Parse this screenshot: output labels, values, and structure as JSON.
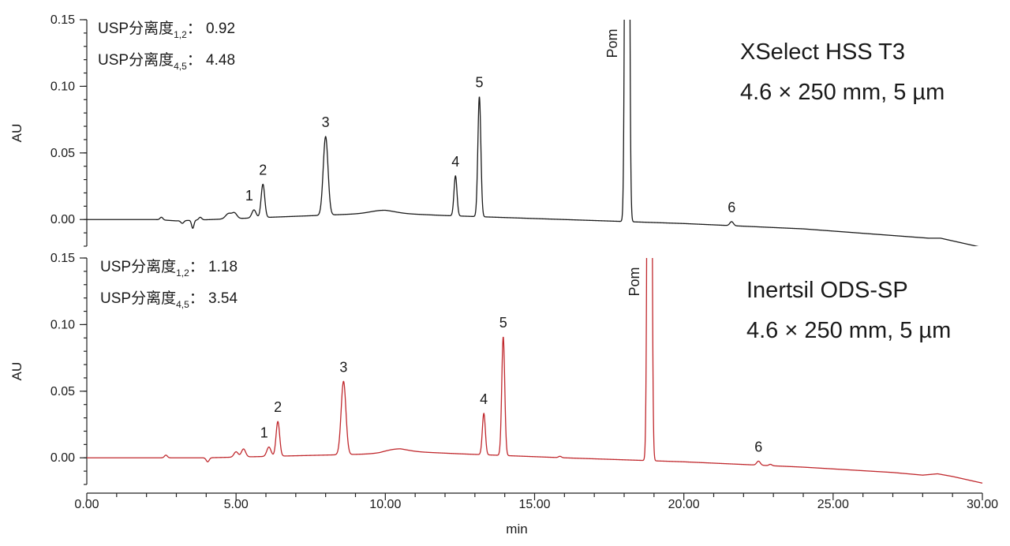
{
  "chart_data": {
    "type": "line",
    "xlabel": "min",
    "xlim": [
      0,
      30
    ],
    "x_ticks": [
      "0.00",
      "5.00",
      "10.00",
      "15.00",
      "20.00",
      "25.00",
      "30.00"
    ],
    "panels": [
      {
        "ylabel": "AU",
        "ylim": [
          -0.02,
          0.15
        ],
        "y_ticks": [
          "0.00",
          "0.05",
          "0.10",
          "0.15"
        ],
        "series": [
          {
            "color": "#1a1a1a",
            "baseline": [
              [
                0,
                0
              ],
              [
                2.3,
                0
              ],
              [
                3.0,
                -0.001
              ],
              [
                10.0,
                0.005
              ],
              [
                12,
                0.003
              ],
              [
                16,
                0.0
              ],
              [
                20,
                -0.003
              ],
              [
                24,
                -0.007
              ],
              [
                27,
                -0.012
              ],
              [
                28.2,
                -0.014
              ],
              [
                28.6,
                -0.014
              ],
              [
                29.0,
                -0.016
              ],
              [
                29.6,
                -0.019
              ],
              [
                30.0,
                -0.021
              ]
            ],
            "features": [
              {
                "t": 2.5,
                "h": 0.002,
                "w": 0.05
              },
              {
                "t": 3.2,
                "h": -0.002,
                "w": 0.05
              },
              {
                "t": 3.55,
                "h": -0.006,
                "w": 0.04
              },
              {
                "t": 3.8,
                "h": 0.002,
                "w": 0.05
              },
              {
                "t": 4.75,
                "h": 0.004,
                "w": 0.1
              },
              {
                "t": 4.95,
                "h": 0.004,
                "w": 0.08
              },
              {
                "t": 9.9,
                "h": 0.002,
                "w": 0.4
              }
            ],
            "peaks": [
              {
                "label": "1",
                "t": 5.6,
                "h": 0.006,
                "w": 0.07
              },
              {
                "label": "2",
                "t": 5.9,
                "h": 0.025,
                "w": 0.06
              },
              {
                "label": "3",
                "t": 8.0,
                "h": 0.059,
                "w": 0.08
              },
              {
                "label": "4",
                "t": 12.35,
                "h": 0.03,
                "w": 0.05
              },
              {
                "label": "5",
                "t": 13.15,
                "h": 0.09,
                "w": 0.05
              },
              {
                "label": "Pom",
                "t": 18.1,
                "h": 1.0,
                "w": 0.05
              },
              {
                "label": "6",
                "t": 21.6,
                "h": 0.003,
                "w": 0.06
              }
            ]
          }
        ],
        "annotations": {
          "res12_prefix": "USP分离度",
          "res12_sub": "1,2",
          "res12_value": "：  0.92",
          "res45_prefix": "USP分离度",
          "res45_sub": "4,5",
          "res45_value": "：  4.48",
          "column_name": "XSelect HSS T3",
          "column_dims": "4.6 × 250 mm, 5 µm"
        }
      },
      {
        "ylabel": "AU",
        "ylim": [
          -0.02,
          0.15
        ],
        "y_ticks": [
          "0.00",
          "0.05",
          "0.10",
          "0.15"
        ],
        "series": [
          {
            "color": "#c0282d",
            "baseline": [
              [
                0,
                0
              ],
              [
                2.0,
                0
              ],
              [
                4.0,
                0
              ],
              [
                9.8,
                0.003
              ],
              [
                10.5,
                0.005
              ],
              [
                12.5,
                0.003
              ],
              [
                16,
                0.0
              ],
              [
                20,
                -0.003
              ],
              [
                24,
                -0.007
              ],
              [
                27,
                -0.011
              ],
              [
                28.0,
                -0.013
              ],
              [
                28.5,
                -0.012
              ],
              [
                29.0,
                -0.014
              ],
              [
                29.6,
                -0.017
              ],
              [
                30.0,
                -0.019
              ]
            ],
            "features": [
              {
                "t": 2.65,
                "h": 0.002,
                "w": 0.05
              },
              {
                "t": 4.05,
                "h": -0.003,
                "w": 0.05
              },
              {
                "t": 5.0,
                "h": 0.004,
                "w": 0.07
              },
              {
                "t": 5.25,
                "h": 0.006,
                "w": 0.07
              },
              {
                "t": 10.3,
                "h": 0.002,
                "w": 0.4
              },
              {
                "t": 15.85,
                "h": 0.001,
                "w": 0.05
              },
              {
                "t": 22.9,
                "h": 0.001,
                "w": 0.05
              }
            ],
            "peaks": [
              {
                "label": "1",
                "t": 6.1,
                "h": 0.007,
                "w": 0.07
              },
              {
                "label": "2",
                "t": 6.4,
                "h": 0.026,
                "w": 0.06
              },
              {
                "label": "3",
                "t": 8.6,
                "h": 0.055,
                "w": 0.08
              },
              {
                "label": "4",
                "t": 13.3,
                "h": 0.031,
                "w": 0.05
              },
              {
                "label": "5",
                "t": 13.95,
                "h": 0.089,
                "w": 0.05
              },
              {
                "label": "Pom",
                "t": 18.85,
                "h": 1.0,
                "w": 0.05
              },
              {
                "label": "6",
                "t": 22.5,
                "h": 0.003,
                "w": 0.06
              }
            ]
          }
        ],
        "annotations": {
          "res12_prefix": "USP分离度",
          "res12_sub": "1,2",
          "res12_value": "：  1.18",
          "res45_prefix": "USP分离度",
          "res45_sub": "4,5",
          "res45_value": "：  3.54",
          "column_name": "Inertsil ODS-SP",
          "column_dims": "4.6 × 250 mm, 5 µm"
        }
      }
    ]
  }
}
